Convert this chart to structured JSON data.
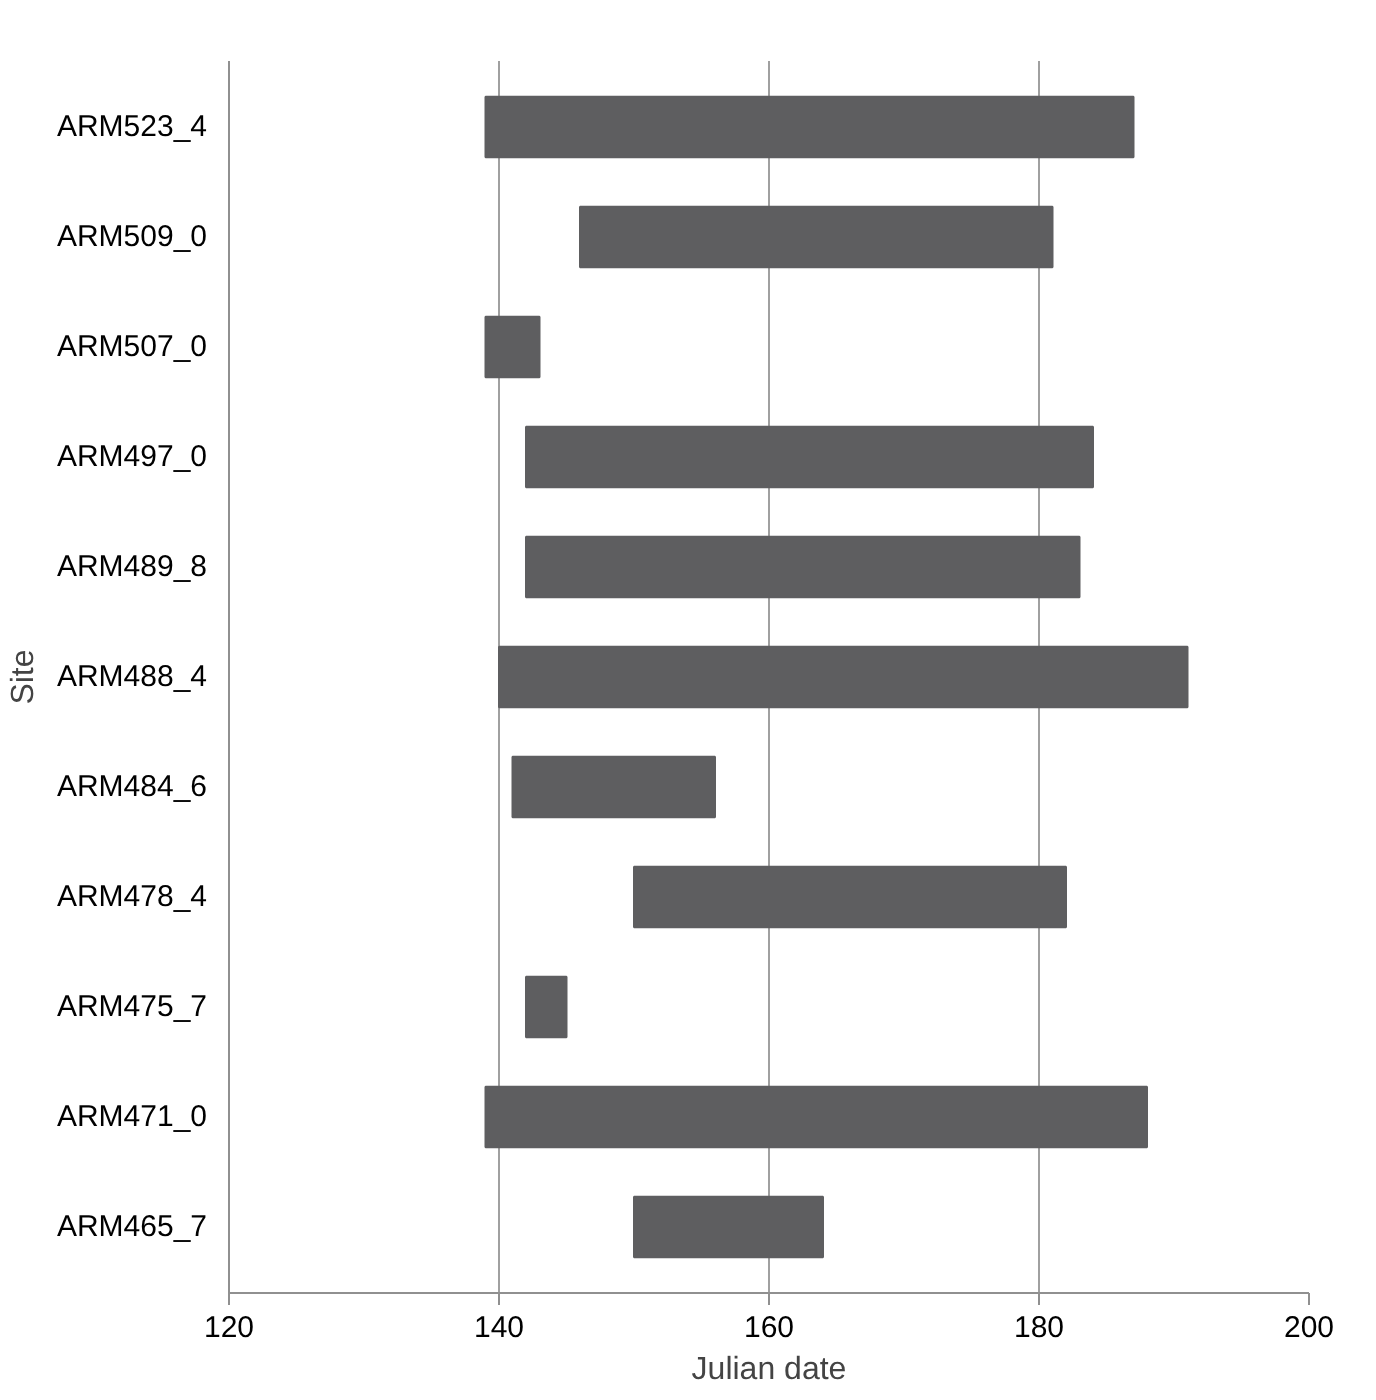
{
  "chart_data": {
    "type": "bar",
    "orientation": "horizontal",
    "xlabel": "Julian date",
    "ylabel": "Site",
    "categories": [
      "ARM523_4",
      "ARM509_0",
      "ARM507_0",
      "ARM497_0",
      "ARM489_8",
      "ARM488_4",
      "ARM484_6",
      "ARM478_4",
      "ARM475_7",
      "ARM471_0",
      "ARM465_7"
    ],
    "base": [
      139,
      146,
      139,
      142,
      142,
      140,
      141,
      150,
      142,
      139,
      150
    ],
    "values": [
      48,
      35,
      4,
      42,
      41,
      51,
      15,
      32,
      3,
      49,
      14
    ],
    "color": "#5e5e60",
    "xlim": [
      120,
      200
    ],
    "xticks": [
      120,
      140,
      160,
      180,
      200
    ],
    "grid": "x"
  }
}
